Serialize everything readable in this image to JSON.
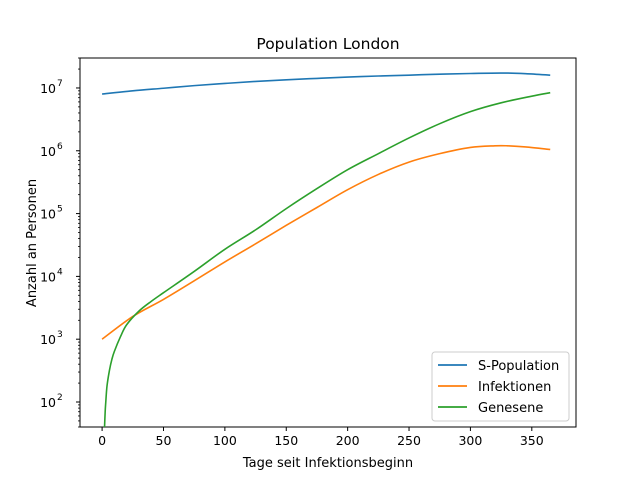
{
  "chart_data": {
    "type": "line",
    "title": "Population London",
    "xlabel": "Tage seit Infektionsbeginn",
    "ylabel": "Anzahl an Personen",
    "x_scale": "linear",
    "y_scale": "log",
    "xlim": [
      -18,
      386
    ],
    "ylim": [
      40,
      30000000
    ],
    "x_ticks": [
      0,
      50,
      100,
      150,
      200,
      250,
      300,
      350
    ],
    "x_tick_labels": [
      "0",
      "50",
      "100",
      "150",
      "200",
      "250",
      "300",
      "350"
    ],
    "y_ticks": [
      100,
      1000,
      10000,
      100000,
      1000000,
      10000000
    ],
    "y_tick_labels": [
      {
        "base": "10",
        "exp": "2"
      },
      {
        "base": "10",
        "exp": "3"
      },
      {
        "base": "10",
        "exp": "4"
      },
      {
        "base": "10",
        "exp": "5"
      },
      {
        "base": "10",
        "exp": "6"
      },
      {
        "base": "10",
        "exp": "7"
      }
    ],
    "grid": false,
    "legend_position": "lower-right",
    "series": [
      {
        "name": "S-Population",
        "color": "#1f77b4",
        "x": [
          0,
          25,
          50,
          75,
          100,
          125,
          150,
          175,
          200,
          225,
          250,
          275,
          300,
          325,
          345,
          365
        ],
        "y": [
          8000000,
          9000000,
          9900000,
          10900000,
          11800000,
          12700000,
          13500000,
          14200000,
          14900000,
          15500000,
          16000000,
          16600000,
          17000000,
          17300000,
          16900000,
          16000000
        ]
      },
      {
        "name": "Infektionen",
        "color": "#ff7f0e",
        "x": [
          0,
          25,
          50,
          75,
          100,
          125,
          150,
          175,
          200,
          225,
          250,
          275,
          300,
          320,
          330,
          345,
          365
        ],
        "y": [
          1000,
          2300,
          4300,
          8500,
          17000,
          33000,
          65000,
          125000,
          240000,
          420000,
          660000,
          900000,
          1130000,
          1200000,
          1200000,
          1150000,
          1050000
        ]
      },
      {
        "name": "Genesene",
        "color": "#2ca02c",
        "x": [
          2,
          2.5,
          3,
          4,
          6,
          8,
          10,
          15,
          20,
          30,
          40,
          50,
          75,
          100,
          125,
          150,
          175,
          200,
          225,
          250,
          275,
          300,
          325,
          350,
          365
        ],
        "y": [
          40,
          70,
          100,
          180,
          320,
          480,
          640,
          1100,
          1700,
          2800,
          4000,
          5500,
          12000,
          27000,
          55000,
          120000,
          250000,
          500000,
          900000,
          1600000,
          2700000,
          4200000,
          5800000,
          7400000,
          8400000
        ]
      }
    ]
  }
}
